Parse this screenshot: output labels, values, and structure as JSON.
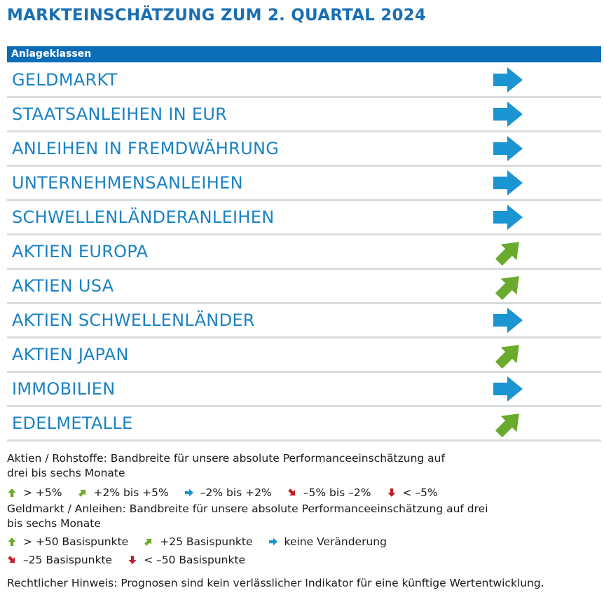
{
  "title": "MARKTEINSCHÄTZUNG ZUM 2. QUARTAL 2024",
  "table": {
    "header": "Anlageklassen",
    "rows": [
      {
        "label": "GELDMARKT",
        "indicator": "right"
      },
      {
        "label": "STAATSANLEIHEN IN EUR",
        "indicator": "right"
      },
      {
        "label": "ANLEIHEN IN FREMDWÄHRUNG",
        "indicator": "right"
      },
      {
        "label": "UNTERNEHMENSANLEIHEN",
        "indicator": "right"
      },
      {
        "label": "SCHWELLENLÄNDERANLEIHEN",
        "indicator": "right"
      },
      {
        "label": "AKTIEN EUROPA",
        "indicator": "up-right"
      },
      {
        "label": "AKTIEN USA",
        "indicator": "up-right"
      },
      {
        "label": "AKTIEN SCHWELLENLÄNDER",
        "indicator": "right"
      },
      {
        "label": "AKTIEN JAPAN",
        "indicator": "up-right"
      },
      {
        "label": "IMMOBILIEN",
        "indicator": "right"
      },
      {
        "label": "EDELMETALLE",
        "indicator": "up-right"
      }
    ]
  },
  "notes": {
    "equities_text": "Aktien / Rohstoffe: Bandbreite für unsere absolute Performanceeinschätzung auf drei bis sechs Monate",
    "equities_legend": [
      {
        "icon": "up",
        "text": "> +5%"
      },
      {
        "icon": "up-right",
        "text": "+2% bis +5%"
      },
      {
        "icon": "right",
        "text": "–2% bis +2%"
      },
      {
        "icon": "down-right",
        "text": "–5% bis –2%"
      },
      {
        "icon": "down",
        "text": "< –5%"
      }
    ],
    "bonds_text": "Geldmarkt / Anleihen: Bandbreite für unsere absolute Performanceeinschätzung auf drei bis sechs Monate",
    "bonds_legend_row1": [
      {
        "icon": "up",
        "text": "> +50 Basispunkte"
      },
      {
        "icon": "up-right",
        "text": "+25 Basispunkte"
      },
      {
        "icon": "right",
        "text": "keine Veränderung"
      }
    ],
    "bonds_legend_row2": [
      {
        "icon": "down-right",
        "text": "–25 Basispunkte"
      },
      {
        "icon": "down",
        "text": "< –50 Basispunkte"
      }
    ],
    "disclaimer": "Rechtlicher Hinweis: Prognosen sind kein verlässlicher Indikator für eine künftige Wertentwicklung."
  },
  "colors": {
    "title": "#1a6fb3",
    "header": "#0b6db7",
    "row_text": "#1b82c4",
    "arrow_right": "#1b94d2",
    "arrow_up_right": "#6aaa2d",
    "arrow_up": "#6aaa2d",
    "arrow_down": "#c0202a",
    "divider": "#d9dcde"
  }
}
